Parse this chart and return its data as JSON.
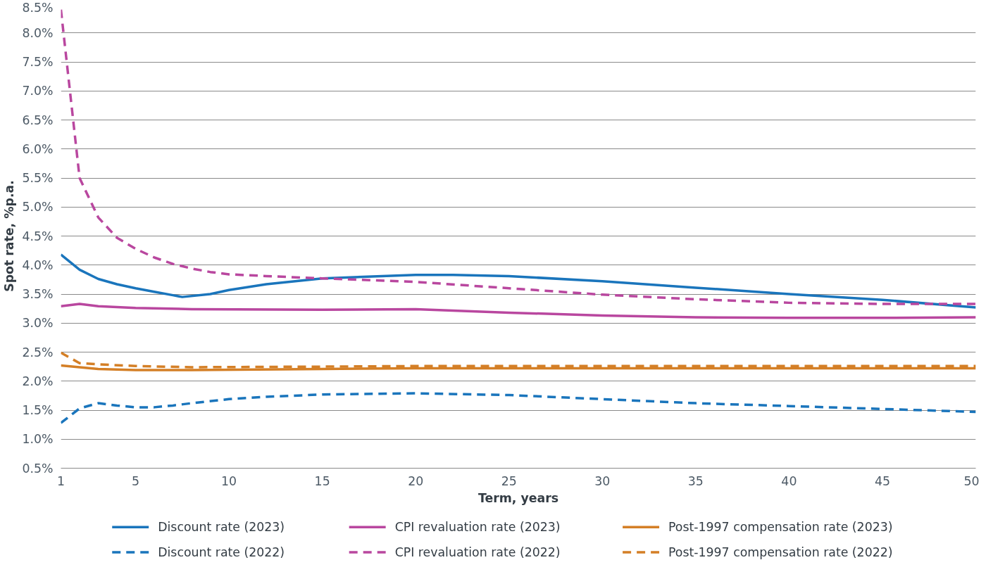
{
  "chart_data": {
    "type": "line",
    "xlabel": "Term, years",
    "ylabel": "Spot rate, %p.a.",
    "xlim": [
      1,
      50
    ],
    "xticks": [
      1,
      5,
      10,
      15,
      20,
      25,
      30,
      35,
      40,
      45,
      50
    ],
    "ylim": [
      0.5,
      8.5
    ],
    "yticks": [
      {
        "value": 0.5,
        "label": "0.5%"
      },
      {
        "value": 1.0,
        "label": "1.0%"
      },
      {
        "value": 1.5,
        "label": "1.5%"
      },
      {
        "value": 2.0,
        "label": "2.0%"
      },
      {
        "value": 2.5,
        "label": "2.5%"
      },
      {
        "value": 3.0,
        "label": "3.0%"
      },
      {
        "value": 3.5,
        "label": "3.5%"
      },
      {
        "value": 4.0,
        "label": "4.0%"
      },
      {
        "value": 4.5,
        "label": "4.5%"
      },
      {
        "value": 5.0,
        "label": "5.0%"
      },
      {
        "value": 5.5,
        "label": "5.5%"
      },
      {
        "value": 6.0,
        "label": "6.0%"
      },
      {
        "value": 6.5,
        "label": "6.5%"
      },
      {
        "value": 7.0,
        "label": "7.0%"
      },
      {
        "value": 7.5,
        "label": "7.5%"
      },
      {
        "value": 8.0,
        "label": "8.0%"
      },
      {
        "value": 8.5,
        "label": "8.5%"
      }
    ],
    "grid": "y",
    "legend": "bottom",
    "marker": "none",
    "series": [
      {
        "name": "Discount rate (2023)",
        "color": "#1a75bc",
        "line_style": "solid",
        "x": [
          1,
          2,
          3,
          4,
          5,
          6,
          7,
          7.5,
          9,
          10,
          12,
          15,
          20,
          22,
          25,
          30,
          35,
          40,
          45,
          50
        ],
        "values": [
          4.18,
          3.92,
          3.76,
          3.67,
          3.6,
          3.54,
          3.48,
          3.45,
          3.5,
          3.57,
          3.67,
          3.77,
          3.83,
          3.83,
          3.81,
          3.72,
          3.61,
          3.5,
          3.4,
          3.27
        ]
      },
      {
        "name": "CPI revaluation rate (2023)",
        "color": "#b9479f",
        "line_style": "solid",
        "x": [
          1,
          2,
          3,
          5,
          8,
          15,
          20,
          25,
          30,
          35,
          40,
          45,
          50
        ],
        "values": [
          3.29,
          3.33,
          3.29,
          3.26,
          3.24,
          3.23,
          3.24,
          3.18,
          3.13,
          3.1,
          3.09,
          3.09,
          3.1
        ]
      },
      {
        "name": "Post-1997 compensation rate (2023)",
        "color": "#d47f26",
        "line_style": "solid",
        "x": [
          1,
          2,
          3,
          5,
          8,
          15,
          20,
          30,
          50
        ],
        "values": [
          2.27,
          2.24,
          2.21,
          2.19,
          2.19,
          2.21,
          2.22,
          2.22,
          2.22
        ]
      },
      {
        "name": "Discount rate (2022)",
        "color": "#1a75bc",
        "line_style": "dashed",
        "x": [
          1,
          2,
          3,
          4,
          5,
          6,
          7,
          8,
          10,
          12,
          15,
          20,
          25,
          30,
          35,
          40,
          45,
          50
        ],
        "values": [
          1.28,
          1.53,
          1.62,
          1.58,
          1.55,
          1.55,
          1.58,
          1.62,
          1.69,
          1.73,
          1.77,
          1.79,
          1.76,
          1.69,
          1.62,
          1.57,
          1.52,
          1.47
        ]
      },
      {
        "name": "CPI revaluation rate (2022)",
        "color": "#b9479f",
        "line_style": "dashed",
        "x": [
          1,
          2,
          3,
          4,
          5,
          6,
          7,
          8,
          9,
          10,
          12,
          15,
          20,
          25,
          30,
          35,
          40,
          45,
          50
        ],
        "values": [
          8.4,
          5.5,
          4.82,
          4.47,
          4.28,
          4.13,
          4.02,
          3.94,
          3.88,
          3.84,
          3.81,
          3.77,
          3.71,
          3.6,
          3.49,
          3.41,
          3.35,
          3.33,
          3.33
        ]
      },
      {
        "name": "Post-1997 compensation rate (2022)",
        "color": "#d47f26",
        "line_style": "dashed",
        "x": [
          1,
          2,
          3,
          5,
          8,
          15,
          20,
          30,
          50
        ],
        "values": [
          2.49,
          2.31,
          2.29,
          2.26,
          2.24,
          2.25,
          2.26,
          2.26,
          2.26
        ]
      }
    ]
  }
}
